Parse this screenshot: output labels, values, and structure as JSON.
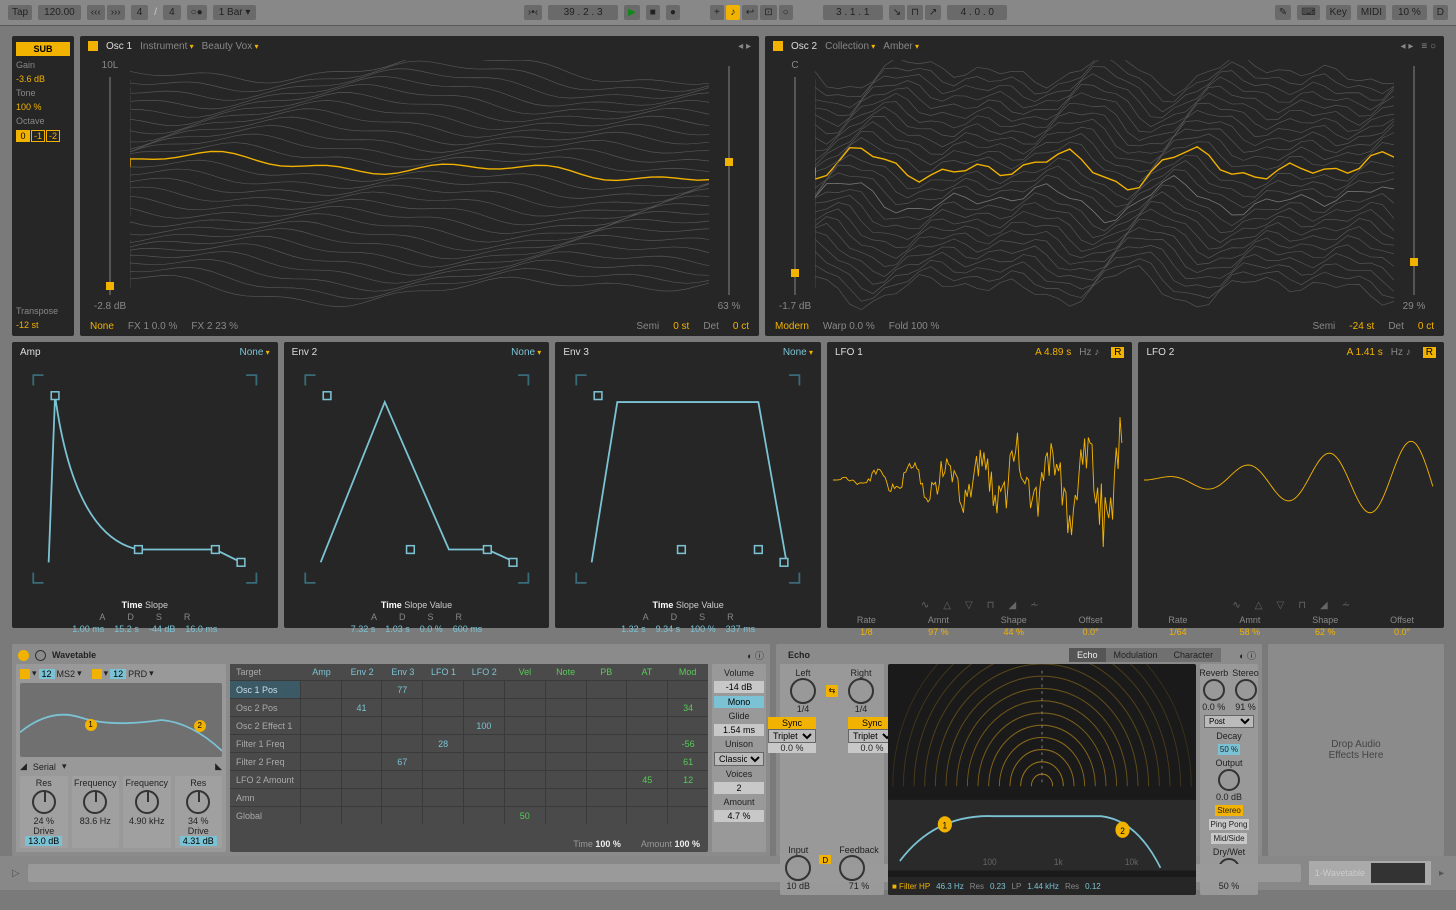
{
  "accent": "#f2b200",
  "cyan": "#7bc3d4",
  "topbar": {
    "tap": "Tap",
    "bpm": "120.00",
    "sig_a": "4",
    "sig_b": "4",
    "metro": "○●",
    "quant": "1 Bar ▾",
    "pos": "39 . 2 . 3",
    "loop_start": "3 . 1 . 1",
    "loop_len": "4 . 0 . 0",
    "key": "Key",
    "midi": "MIDI",
    "cpu": "10 %",
    "d": "D"
  },
  "sub": {
    "label": "SUB",
    "gain_l": "Gain",
    "gain": "-3.6 dB",
    "tone_l": "Tone",
    "tone": "100 %",
    "oct_l": "Octave",
    "octs": [
      "0",
      "-1",
      "-2"
    ],
    "oct_on": 0,
    "trans_l": "Transpose",
    "trans": "-12 st"
  },
  "osc1": {
    "title": "Osc 1",
    "cat_l": "Instrument",
    "cat": "Beauty Vox",
    "slL_top": "10L",
    "slL_bot": "-2.8 dB",
    "slL_pos": 0.94,
    "slR_bot": "63 %",
    "slR_pos": 0.4,
    "fx": "None",
    "fx1": "FX 1 0.0 %",
    "fx2": "FX 2 23 %",
    "semi_l": "Semi",
    "semi": "0 st",
    "det_l": "Det",
    "det": "0 ct"
  },
  "osc2": {
    "title": "Osc 2",
    "cat_l": "Collection",
    "cat": "Amber",
    "slL_top": "C",
    "slL_bot": "-1.7 dB",
    "slL_pos": 0.88,
    "slR_bot": "29 %",
    "slR_pos": 0.84,
    "fx": "Modern",
    "fx1": "Warp  0.0 %",
    "fx2": "Fold  100 %",
    "semi_l": "Semi",
    "semi": "-24 st",
    "det_l": "Det",
    "det": "0 ct"
  },
  "env": [
    {
      "title": "Amp",
      "none": "None",
      "mode": "Time   Slope",
      "labels": [
        "A",
        "D",
        "S",
        "R"
      ],
      "vals": [
        "1.00 ms",
        "15.2 s",
        "-44 dB",
        "16.0 ms"
      ]
    },
    {
      "title": "Env 2",
      "none": "None",
      "mode": "Time   Slope   Value",
      "labels": [
        "A",
        "D",
        "S",
        "R"
      ],
      "vals": [
        "7.32 s",
        "1.03 s",
        "0.0 %",
        "600 ms"
      ]
    },
    {
      "title": "Env 3",
      "none": "None",
      "mode": "Time   Slope   Value",
      "labels": [
        "A",
        "D",
        "S",
        "R"
      ],
      "vals": [
        "1.32 s",
        "9.34 s",
        "100 %",
        "337 ms"
      ]
    }
  ],
  "lfo": [
    {
      "title": "LFO 1",
      "A": "A",
      "rate": "4.89 s",
      "hz": "Hz",
      "rate_l": "Rate",
      "rate_v": "1/8",
      "amt_l": "Amnt",
      "amt_v": "97 %",
      "shp_l": "Shape",
      "shp_v": "44 %",
      "off_l": "Offset",
      "off_v": "0.0°"
    },
    {
      "title": "LFO 2",
      "A": "A",
      "rate": "1.41 s",
      "hz": "Hz",
      "rate_l": "Rate",
      "rate_v": "1/64",
      "amt_l": "Amnt",
      "amt_v": "58 %",
      "shp_l": "Shape",
      "shp_v": "62 %",
      "off_l": "Offset",
      "off_v": "0.0°"
    }
  ],
  "wt": {
    "title": "Wavetable",
    "osc_a": "12",
    "osc_a2": "MS2",
    "osc_b": "12",
    "osc_b2": "PRD",
    "serial": "Serial",
    "k": [
      {
        "l": "Res",
        "v": "24 %",
        "l2": "Drive",
        "v2": "13.0 dB"
      },
      {
        "l": "Frequency",
        "v": "83.6 Hz"
      },
      {
        "l": "Frequency",
        "v": "4.90 kHz"
      },
      {
        "l": "Res",
        "v": "34 %",
        "l2": "Drive",
        "v2": "4.31 dB"
      }
    ],
    "matrix": {
      "cols": [
        "Target",
        "Amp",
        "Env 2",
        "Env 3",
        "LFO 1",
        "LFO 2",
        "Vel",
        "Note",
        "PB",
        "AT",
        "Mod"
      ],
      "rows": [
        {
          "t": "Osc 1 Pos",
          "sel": true,
          "c": {
            "Env 3": "77"
          }
        },
        {
          "t": "Osc 2 Pos",
          "c": {
            "Env 2": "41",
            "Mod": "34"
          }
        },
        {
          "t": "Osc 2 Effect 1",
          "c": {
            "LFO 2": "100"
          }
        },
        {
          "t": "Filter 1 Freq",
          "c": {
            "LFO 1": "28",
            "Mod": "-56"
          }
        },
        {
          "t": "Filter 2 Freq",
          "c": {
            "Env 3": "67",
            "Mod": "61"
          }
        },
        {
          "t": "LFO 2 Amount",
          "c": {
            "AT": "45",
            "Mod": "12"
          }
        },
        {
          "t": "Amn",
          "c": {}
        },
        {
          "t": "Global",
          "c": {
            "Vel": "50"
          }
        }
      ],
      "time": "Time",
      "time_v": "100 %",
      "amt": "Amount",
      "amt_v": "100 %"
    },
    "side": {
      "vol_l": "Volume",
      "vol": "-14 dB",
      "mono": "Mono",
      "glide_l": "Glide",
      "glide": "1.54 ms",
      "uni_l": "Unison",
      "uni": "Classic",
      "voices_l": "Voices",
      "voices": "2",
      "amt_l": "Amount",
      "amt": "4.7 %"
    }
  },
  "echo": {
    "title": "Echo",
    "tabs": [
      "Echo",
      "Modulation",
      "Character"
    ],
    "left_l": "Left",
    "right_l": "Right",
    "frac": "1/4",
    "sync": "Sync",
    "triplet": "Triplet",
    "pct": "0.0 %",
    "input_l": "Input",
    "input": "10 dB",
    "fb_l": "Feedback",
    "fb": "71 %",
    "d": "D",
    "inv": "Ø",
    "filter": "■  Filter HP",
    "hp": "46.3 Hz",
    "res1": "Res",
    "res1v": "0.23",
    "lp": "LP",
    "lpv": "1.44 kHz",
    "res2": "Res",
    "res2v": "0.12",
    "rv_l": "Reverb",
    "rv": "0.0 %",
    "st_l": "Stereo",
    "st": "91 %",
    "out_l": "Output",
    "out": "0.0 dB",
    "post": "Post",
    "decay_l": "Decay",
    "decay": "50 %",
    "stereo": "Stereo",
    "pp": "Ping Pong",
    "ms": "Mid/Side",
    "dw_l": "Dry/Wet",
    "dw": "50 %"
  },
  "drop": "Drop Audio\nEffects Here",
  "status": {
    "track": "1-Wavetable"
  }
}
